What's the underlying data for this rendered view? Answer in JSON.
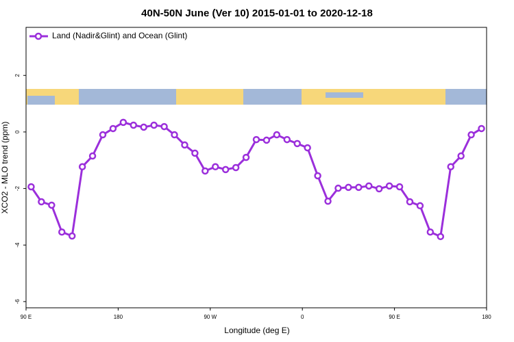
{
  "chart_data": {
    "type": "line",
    "title": "40N-50N June (Ver 10)   2015-01-01 to 2020-12-18",
    "x_label": "Longitude (deg E)",
    "y_label": "XCO2 - MLO trend (ppm)",
    "x": [
      95,
      105,
      115,
      125,
      135,
      145,
      155,
      165,
      175,
      185,
      195,
      205,
      215,
      225,
      235,
      245,
      255,
      265,
      275,
      285,
      295,
      305,
      315,
      325,
      335,
      345,
      355,
      365,
      375,
      385,
      395,
      405,
      415,
      425,
      435,
      445,
      455,
      465,
      475,
      485,
      495,
      505,
      515,
      525,
      535
    ],
    "series": [
      {
        "name": "Land (Nadir&Glint) and Ocean (Glint)",
        "color": "#9b2fdb",
        "values": [
          -1.94,
          -2.47,
          -2.59,
          -3.54,
          -3.68,
          -1.23,
          -0.85,
          -0.1,
          0.12,
          0.34,
          0.24,
          0.17,
          0.24,
          0.19,
          -0.1,
          -0.46,
          -0.75,
          -1.38,
          -1.23,
          -1.33,
          -1.26,
          -0.9,
          -0.27,
          -0.29,
          -0.1,
          -0.27,
          -0.41,
          -0.56,
          -1.55,
          -2.45,
          -1.99,
          -1.96,
          -1.96,
          -1.91,
          -2.01,
          -1.91,
          -1.94,
          -2.47,
          -2.61,
          -3.54,
          -3.7,
          -1.23,
          -0.85,
          -0.1,
          0.12
        ]
      }
    ],
    "xlim": [
      90,
      540
    ],
    "xticks": [
      {
        "value": 90,
        "label": "90 E"
      },
      {
        "value": 180,
        "label": "180"
      },
      {
        "value": 270,
        "label": "90 W"
      },
      {
        "value": 360,
        "label": "0"
      },
      {
        "value": 450,
        "label": "90 E"
      },
      {
        "value": 540,
        "label": "180"
      }
    ],
    "ylim": [
      -6.22,
      3.7
    ],
    "yticks": [
      -6,
      -4,
      -2,
      0,
      2
    ],
    "legend": "top-left"
  }
}
